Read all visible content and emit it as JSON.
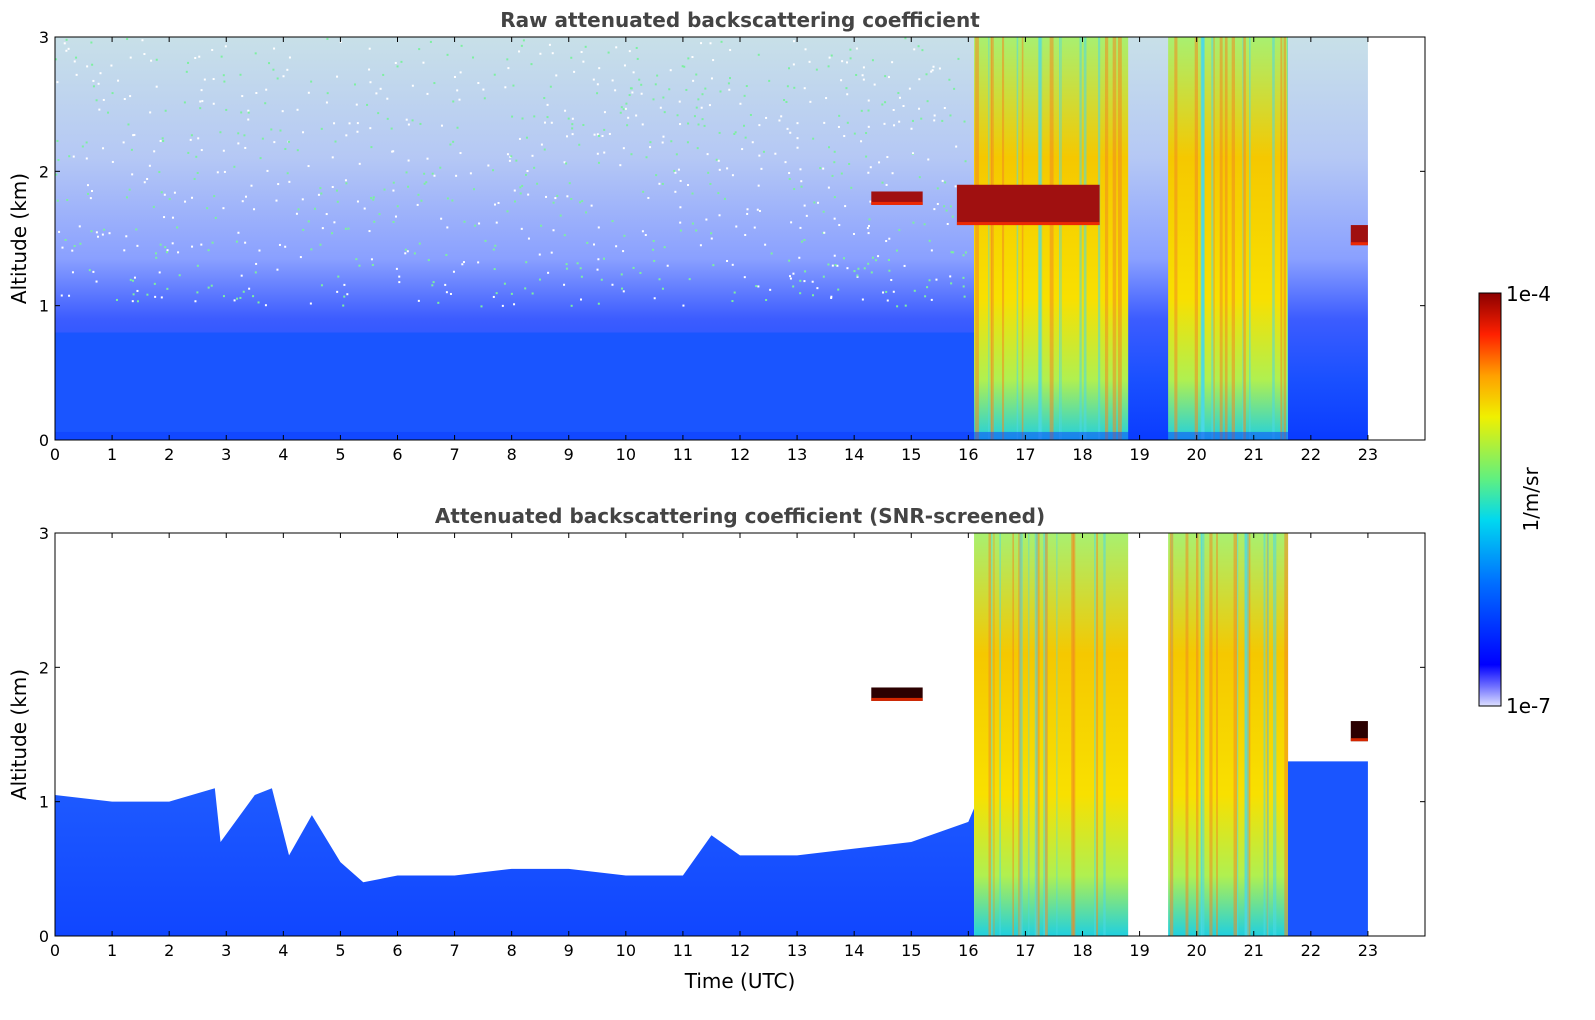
{
  "figure": {
    "cbar_label": "1/m/sr",
    "cbar_max_label": "1e-4",
    "cbar_min_label": "1e-7"
  },
  "colors": {
    "low": "#0000ff",
    "mid": "#1fe0e0",
    "high": "#ffe000",
    "max": "#8b0000",
    "axis": "#000000",
    "title": "#444444",
    "cloud_edge": "#000000"
  },
  "chart_data": [
    {
      "type": "heatmap",
      "title": "Raw attenuated backscattering coefficient",
      "xlabel": "",
      "ylabel": "Altitude (km)",
      "xlim": [
        0,
        24
      ],
      "ylim": [
        0,
        3
      ],
      "x_ticks": [
        "0",
        "1",
        "2",
        "3",
        "4",
        "5",
        "6",
        "7",
        "8",
        "9",
        "10",
        "11",
        "12",
        "13",
        "14",
        "15",
        "16",
        "17",
        "18",
        "19",
        "20",
        "21",
        "22",
        "23"
      ],
      "y_ticks": [
        "0",
        "1",
        "2",
        "3"
      ],
      "data_end_time": 23,
      "colormap": "jet",
      "color_scale": "log",
      "color_range": [
        1e-07,
        0.0001
      ],
      "features": [
        {
          "name": "boundary-layer aerosol",
          "start": 0,
          "end": 16.1,
          "top_km": 0.8
        },
        {
          "name": "precipitation/cloud column",
          "start": 16.1,
          "end": 18.8,
          "top_km": 3.0
        },
        {
          "name": "precipitation/cloud column",
          "start": 19.5,
          "end": 21.6,
          "top_km": 3.0
        },
        {
          "name": "cloud layer",
          "start": 14.3,
          "end": 15.2,
          "base_km": 1.75,
          "top_km": 1.85
        },
        {
          "name": "cloud layer",
          "start": 15.8,
          "end": 18.3,
          "base_km": 1.6,
          "top_km": 1.9
        },
        {
          "name": "cloud layer",
          "start": 22.7,
          "end": 23.0,
          "base_km": 1.45,
          "top_km": 1.6
        }
      ]
    },
    {
      "type": "heatmap",
      "title": "Attenuated backscattering coefficient (SNR-screened)",
      "xlabel": "Time (UTC)",
      "ylabel": "Altitude (km)",
      "xlim": [
        0,
        24
      ],
      "ylim": [
        0,
        3
      ],
      "x_ticks": [
        "0",
        "1",
        "2",
        "3",
        "4",
        "5",
        "6",
        "7",
        "8",
        "9",
        "10",
        "11",
        "12",
        "13",
        "14",
        "15",
        "16",
        "17",
        "18",
        "19",
        "20",
        "21",
        "22",
        "23"
      ],
      "y_ticks": [
        "0",
        "1",
        "2",
        "3"
      ],
      "data_end_time": 23,
      "colormap": "jet",
      "color_scale": "log",
      "color_range": [
        1e-07,
        0.0001
      ],
      "screened_layer_top_km": [
        [
          0,
          1.05
        ],
        [
          1,
          1.0
        ],
        [
          2,
          1.0
        ],
        [
          2.8,
          1.1
        ],
        [
          2.9,
          0.7
        ],
        [
          3.5,
          1.05
        ],
        [
          3.8,
          1.1
        ],
        [
          4.1,
          0.6
        ],
        [
          4.5,
          0.9
        ],
        [
          5.0,
          0.55
        ],
        [
          5.4,
          0.4
        ],
        [
          6,
          0.45
        ],
        [
          7,
          0.45
        ],
        [
          8,
          0.5
        ],
        [
          9,
          0.5
        ],
        [
          10,
          0.45
        ],
        [
          11,
          0.45
        ],
        [
          11.5,
          0.75
        ],
        [
          12,
          0.6
        ],
        [
          13,
          0.6
        ],
        [
          14,
          0.65
        ],
        [
          15,
          0.7
        ],
        [
          16,
          0.85
        ],
        [
          16.1,
          0.95
        ]
      ],
      "features": [
        {
          "name": "precipitation/cloud column",
          "start": 16.1,
          "end": 18.8,
          "top_km": 3.0
        },
        {
          "name": "precipitation/cloud column",
          "start": 19.5,
          "end": 21.6,
          "top_km": 3.0
        },
        {
          "name": "cloud layer",
          "start": 14.3,
          "end": 15.2,
          "base_km": 1.75,
          "top_km": 1.85
        },
        {
          "name": "cloud layer",
          "start": 22.7,
          "end": 23.0,
          "base_km": 1.45,
          "top_km": 1.6
        },
        {
          "name": "boundary layer",
          "start": 21.6,
          "end": 23.0,
          "top_km": 1.3
        }
      ]
    }
  ]
}
